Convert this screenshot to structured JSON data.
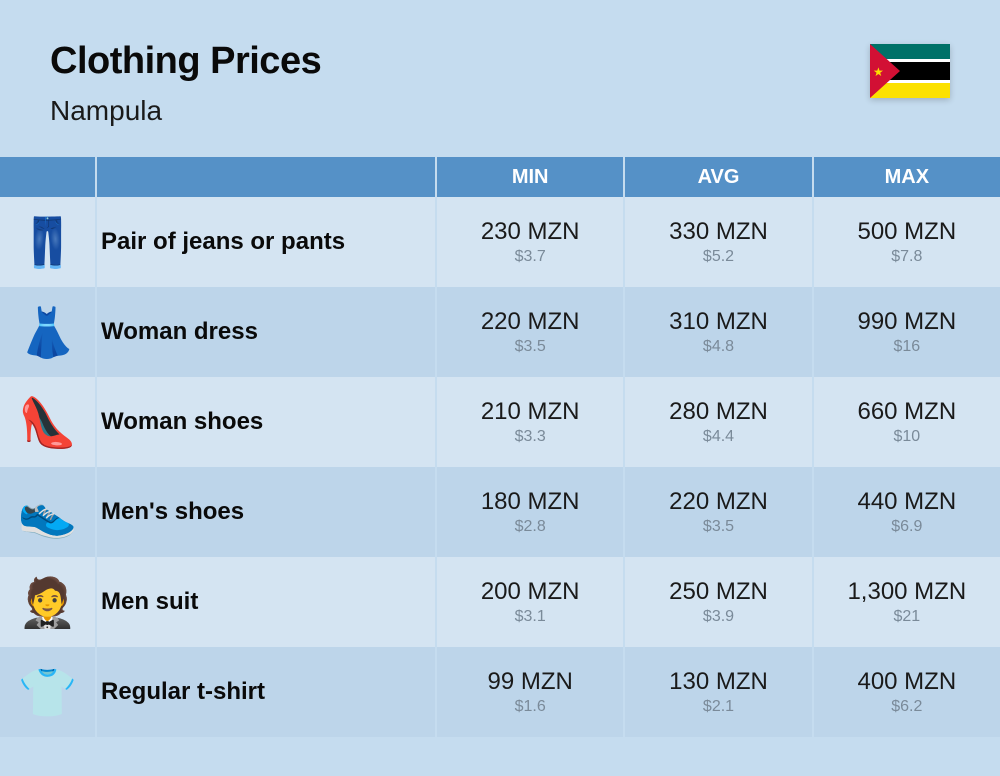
{
  "header": {
    "title": "Clothing Prices",
    "subtitle": "Nampula",
    "flag_colors": {
      "green": "#007168",
      "black": "#000000",
      "yellow": "#fce100",
      "red": "#d21034",
      "white": "#ffffff"
    }
  },
  "table": {
    "type": "table",
    "background_even": "#d4e4f2",
    "background_odd": "#bdd5ea",
    "header_bg": "#5591c7",
    "header_text_color": "#ffffff",
    "border_color": "#c5dcef",
    "primary_text_color": "#1a1a1a",
    "secondary_text_color": "#7a8a99",
    "columns": [
      "",
      "",
      "MIN",
      "AVG",
      "MAX"
    ],
    "rows": [
      {
        "icon": "👖",
        "label": "Pair of jeans or pants",
        "min": {
          "primary": "230 MZN",
          "secondary": "$3.7"
        },
        "avg": {
          "primary": "330 MZN",
          "secondary": "$5.2"
        },
        "max": {
          "primary": "500 MZN",
          "secondary": "$7.8"
        }
      },
      {
        "icon": "👗",
        "label": "Woman dress",
        "min": {
          "primary": "220 MZN",
          "secondary": "$3.5"
        },
        "avg": {
          "primary": "310 MZN",
          "secondary": "$4.8"
        },
        "max": {
          "primary": "990 MZN",
          "secondary": "$16"
        }
      },
      {
        "icon": "👠",
        "label": "Woman shoes",
        "min": {
          "primary": "210 MZN",
          "secondary": "$3.3"
        },
        "avg": {
          "primary": "280 MZN",
          "secondary": "$4.4"
        },
        "max": {
          "primary": "660 MZN",
          "secondary": "$10"
        }
      },
      {
        "icon": "👟",
        "label": "Men's shoes",
        "min": {
          "primary": "180 MZN",
          "secondary": "$2.8"
        },
        "avg": {
          "primary": "220 MZN",
          "secondary": "$3.5"
        },
        "max": {
          "primary": "440 MZN",
          "secondary": "$6.9"
        }
      },
      {
        "icon": "🤵",
        "label": "Men suit",
        "min": {
          "primary": "200 MZN",
          "secondary": "$3.1"
        },
        "avg": {
          "primary": "250 MZN",
          "secondary": "$3.9"
        },
        "max": {
          "primary": "1,300 MZN",
          "secondary": "$21"
        }
      },
      {
        "icon": "👕",
        "label": "Regular t-shirt",
        "min": {
          "primary": "99 MZN",
          "secondary": "$1.6"
        },
        "avg": {
          "primary": "130 MZN",
          "secondary": "$2.1"
        },
        "max": {
          "primary": "400 MZN",
          "secondary": "$6.2"
        }
      }
    ]
  }
}
